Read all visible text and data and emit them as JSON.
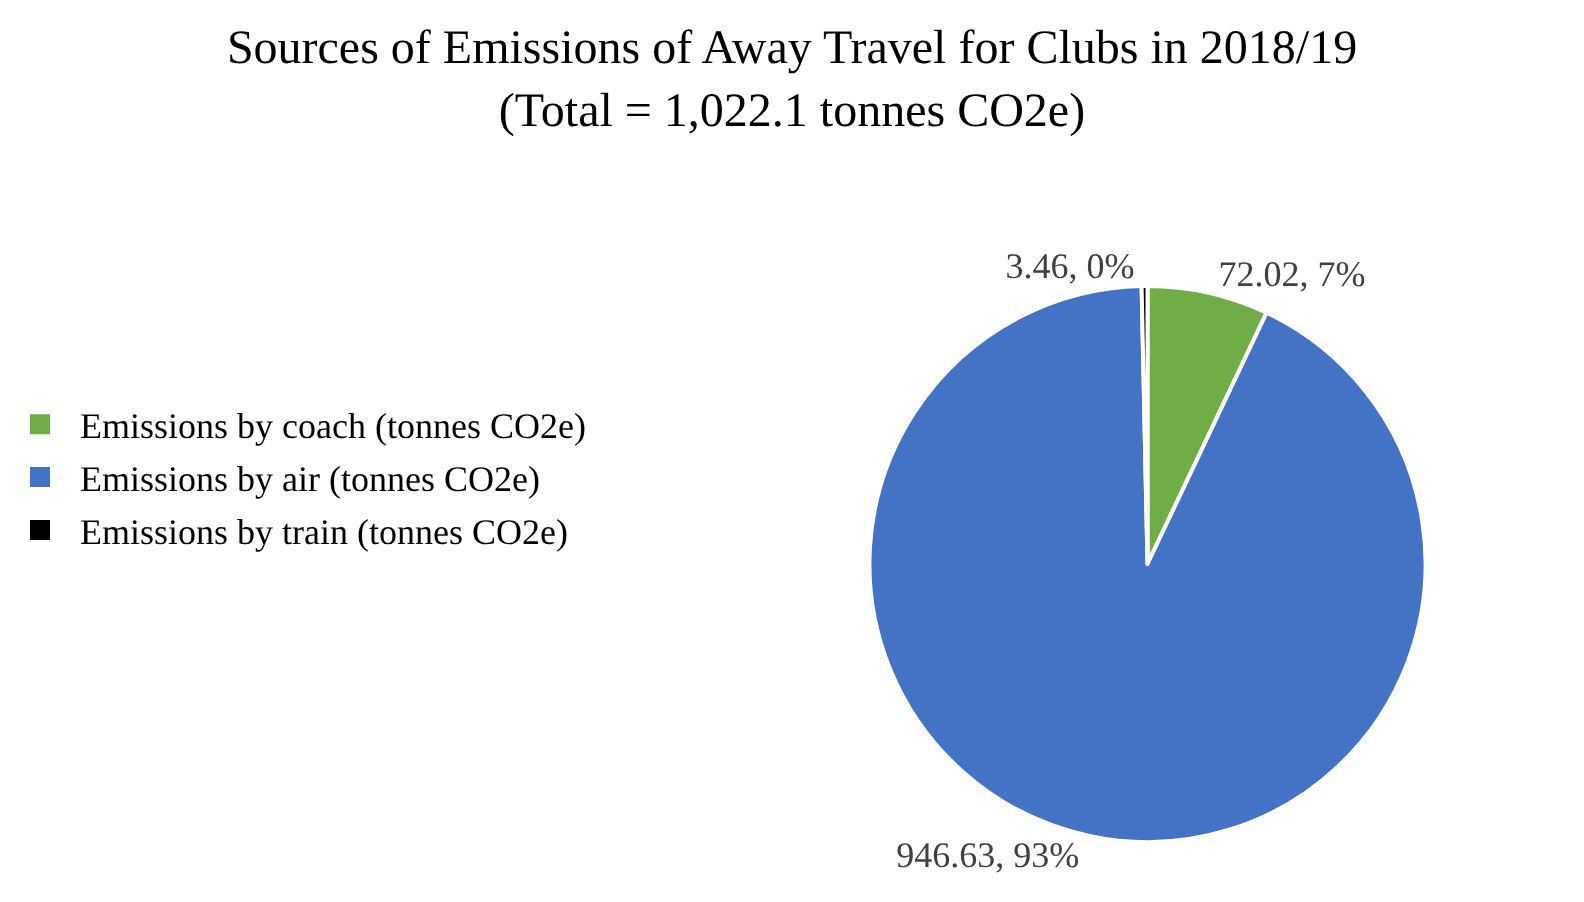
{
  "chart_data": {
    "type": "pie",
    "title": "Sources of Emissions of Away Travel for Clubs in 2018/19\n(Total = 1,022.1 tonnes CO2e)",
    "categories": [
      "Emissions by coach (tonnes CO2e)",
      "Emissions by air (tonnes CO2e)",
      "Emissions by train (tonnes CO2e)"
    ],
    "values": [
      72.02,
      946.63,
      3.46
    ],
    "colors": [
      "#70ad47",
      "#4472c4",
      "#000000"
    ],
    "value_labels": [
      "72.02, 7%",
      "946.63, 93%",
      "3.46, 0%"
    ],
    "legend": "left"
  }
}
